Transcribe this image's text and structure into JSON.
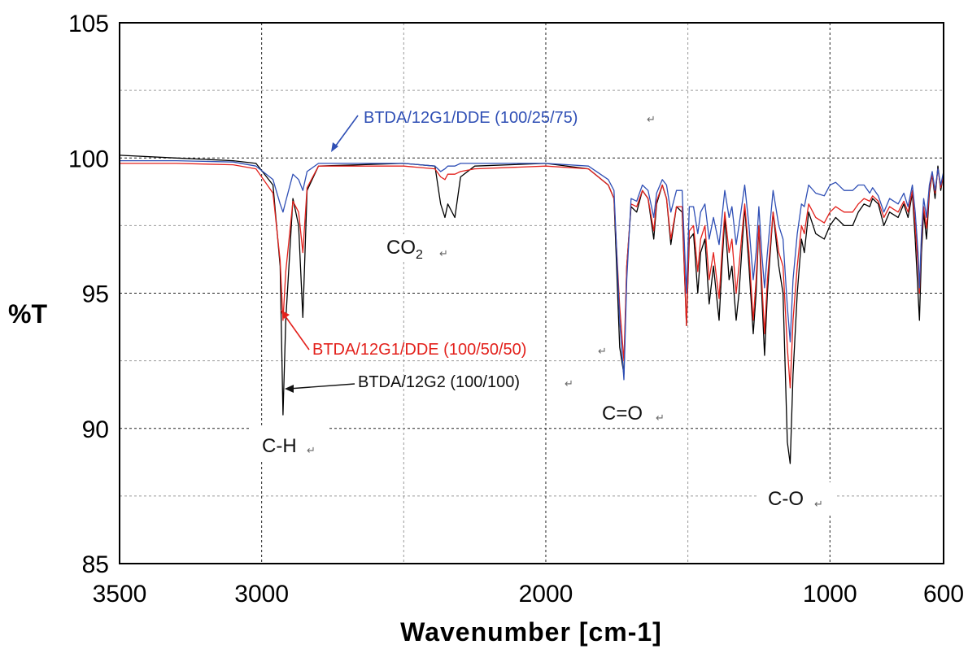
{
  "chart_data": {
    "type": "line",
    "xlabel": "Wavenumber [cm-1]",
    "ylabel": "%T",
    "xlim": [
      3500,
      600
    ],
    "ylim": [
      85,
      105
    ],
    "x_reversed": true,
    "grid": true,
    "x_ticks": [
      "3500",
      "3000",
      "2000",
      "1000",
      "600"
    ],
    "x_tick_values": [
      3500,
      3000,
      2000,
      1000,
      600
    ],
    "y_ticks": [
      "105",
      "100",
      "95",
      "90",
      "85"
    ],
    "y_tick_values": [
      105,
      100,
      95,
      90,
      85
    ],
    "series": [
      {
        "name": "BTDA/12G2 (100/100)",
        "color": "#000000",
        "points": [
          [
            3500,
            100.1
          ],
          [
            3300,
            100.0
          ],
          [
            3100,
            99.9
          ],
          [
            3020,
            99.8
          ],
          [
            2960,
            99.0
          ],
          [
            2935,
            96.0
          ],
          [
            2925,
            90.5
          ],
          [
            2915,
            94.0
          ],
          [
            2890,
            98.5
          ],
          [
            2870,
            97.5
          ],
          [
            2855,
            94.1
          ],
          [
            2840,
            98.8
          ],
          [
            2800,
            99.7
          ],
          [
            2500,
            99.8
          ],
          [
            2390,
            99.7
          ],
          [
            2370,
            98.3
          ],
          [
            2355,
            97.8
          ],
          [
            2345,
            98.3
          ],
          [
            2320,
            97.8
          ],
          [
            2300,
            99.3
          ],
          [
            2250,
            99.7
          ],
          [
            2000,
            99.8
          ],
          [
            1850,
            99.6
          ],
          [
            1780,
            99.0
          ],
          [
            1760,
            98.5
          ],
          [
            1740,
            93.0
          ],
          [
            1725,
            92.0
          ],
          [
            1715,
            96.0
          ],
          [
            1700,
            98.2
          ],
          [
            1680,
            98.0
          ],
          [
            1660,
            98.8
          ],
          [
            1640,
            98.5
          ],
          [
            1620,
            97.0
          ],
          [
            1610,
            98.3
          ],
          [
            1590,
            99.0
          ],
          [
            1575,
            98.5
          ],
          [
            1560,
            96.8
          ],
          [
            1540,
            98.2
          ],
          [
            1520,
            98.0
          ],
          [
            1505,
            93.8
          ],
          [
            1495,
            97.0
          ],
          [
            1480,
            97.2
          ],
          [
            1465,
            95.0
          ],
          [
            1455,
            96.5
          ],
          [
            1440,
            97.0
          ],
          [
            1425,
            94.6
          ],
          [
            1410,
            96.0
          ],
          [
            1390,
            94.0
          ],
          [
            1380,
            96.0
          ],
          [
            1370,
            97.8
          ],
          [
            1355,
            95.5
          ],
          [
            1345,
            96.0
          ],
          [
            1330,
            94.0
          ],
          [
            1320,
            95.0
          ],
          [
            1300,
            98.2
          ],
          [
            1285,
            96.0
          ],
          [
            1270,
            93.5
          ],
          [
            1260,
            95.0
          ],
          [
            1250,
            97.5
          ],
          [
            1240,
            95.0
          ],
          [
            1230,
            92.7
          ],
          [
            1220,
            95.0
          ],
          [
            1200,
            98.0
          ],
          [
            1180,
            96.0
          ],
          [
            1165,
            95.0
          ],
          [
            1150,
            89.5
          ],
          [
            1140,
            88.7
          ],
          [
            1130,
            92.0
          ],
          [
            1115,
            95.0
          ],
          [
            1100,
            97.0
          ],
          [
            1090,
            96.5
          ],
          [
            1075,
            98.0
          ],
          [
            1050,
            97.2
          ],
          [
            1020,
            97.0
          ],
          [
            1000,
            97.5
          ],
          [
            980,
            97.8
          ],
          [
            950,
            97.5
          ],
          [
            920,
            97.5
          ],
          [
            900,
            98.0
          ],
          [
            880,
            98.3
          ],
          [
            860,
            98.2
          ],
          [
            850,
            98.5
          ],
          [
            830,
            98.3
          ],
          [
            810,
            97.5
          ],
          [
            790,
            98.0
          ],
          [
            760,
            97.8
          ],
          [
            740,
            98.3
          ],
          [
            725,
            97.8
          ],
          [
            710,
            98.7
          ],
          [
            700,
            97.0
          ],
          [
            690,
            95.0
          ],
          [
            685,
            94.0
          ],
          [
            678,
            96.5
          ],
          [
            670,
            98.0
          ],
          [
            660,
            97.0
          ],
          [
            650,
            98.7
          ],
          [
            640,
            99.4
          ],
          [
            630,
            98.5
          ],
          [
            620,
            99.7
          ],
          [
            610,
            98.8
          ],
          [
            600,
            99.4
          ]
        ]
      },
      {
        "name": "BTDA/12G1/DDE (100/50/50)",
        "color": "#e3211c",
        "points": [
          [
            3500,
            99.8
          ],
          [
            3300,
            99.8
          ],
          [
            3100,
            99.75
          ],
          [
            3020,
            99.6
          ],
          [
            2960,
            98.7
          ],
          [
            2935,
            96.2
          ],
          [
            2925,
            94.0
          ],
          [
            2915,
            95.8
          ],
          [
            2890,
            98.4
          ],
          [
            2870,
            98.0
          ],
          [
            2855,
            96.5
          ],
          [
            2840,
            98.9
          ],
          [
            2800,
            99.7
          ],
          [
            2500,
            99.7
          ],
          [
            2390,
            99.6
          ],
          [
            2370,
            99.3
          ],
          [
            2355,
            99.2
          ],
          [
            2345,
            99.4
          ],
          [
            2320,
            99.4
          ],
          [
            2300,
            99.5
          ],
          [
            2250,
            99.6
          ],
          [
            2000,
            99.7
          ],
          [
            1850,
            99.6
          ],
          [
            1780,
            99.0
          ],
          [
            1760,
            98.5
          ],
          [
            1740,
            94.5
          ],
          [
            1725,
            92.5
          ],
          [
            1715,
            96.0
          ],
          [
            1700,
            98.3
          ],
          [
            1680,
            98.2
          ],
          [
            1660,
            98.8
          ],
          [
            1640,
            98.5
          ],
          [
            1620,
            97.3
          ],
          [
            1610,
            98.4
          ],
          [
            1590,
            99.0
          ],
          [
            1575,
            98.5
          ],
          [
            1560,
            97.0
          ],
          [
            1540,
            98.2
          ],
          [
            1520,
            98.2
          ],
          [
            1505,
            93.8
          ],
          [
            1495,
            97.3
          ],
          [
            1480,
            97.5
          ],
          [
            1465,
            95.8
          ],
          [
            1455,
            97.0
          ],
          [
            1440,
            97.5
          ],
          [
            1425,
            95.5
          ],
          [
            1410,
            96.5
          ],
          [
            1390,
            94.8
          ],
          [
            1380,
            96.5
          ],
          [
            1370,
            98.0
          ],
          [
            1355,
            96.5
          ],
          [
            1345,
            97.0
          ],
          [
            1330,
            95.0
          ],
          [
            1320,
            96.0
          ],
          [
            1300,
            98.3
          ],
          [
            1285,
            96.5
          ],
          [
            1270,
            94.0
          ],
          [
            1260,
            95.5
          ],
          [
            1250,
            97.5
          ],
          [
            1240,
            95.5
          ],
          [
            1230,
            93.5
          ],
          [
            1220,
            95.5
          ],
          [
            1200,
            98.0
          ],
          [
            1180,
            96.5
          ],
          [
            1165,
            96.0
          ],
          [
            1150,
            93.0
          ],
          [
            1140,
            91.5
          ],
          [
            1130,
            94.0
          ],
          [
            1115,
            96.0
          ],
          [
            1100,
            97.5
          ],
          [
            1090,
            97.2
          ],
          [
            1075,
            98.3
          ],
          [
            1050,
            97.8
          ],
          [
            1020,
            97.6
          ],
          [
            1000,
            98.0
          ],
          [
            980,
            98.2
          ],
          [
            950,
            98.0
          ],
          [
            920,
            98.0
          ],
          [
            900,
            98.3
          ],
          [
            880,
            98.5
          ],
          [
            860,
            98.4
          ],
          [
            850,
            98.6
          ],
          [
            830,
            98.4
          ],
          [
            810,
            97.8
          ],
          [
            790,
            98.2
          ],
          [
            760,
            98.0
          ],
          [
            740,
            98.4
          ],
          [
            725,
            98.0
          ],
          [
            710,
            98.8
          ],
          [
            700,
            97.5
          ],
          [
            690,
            96.0
          ],
          [
            685,
            95.0
          ],
          [
            678,
            97.0
          ],
          [
            670,
            98.2
          ],
          [
            660,
            97.4
          ],
          [
            650,
            98.8
          ],
          [
            640,
            99.4
          ],
          [
            630,
            98.7
          ],
          [
            620,
            99.6
          ],
          [
            610,
            98.9
          ],
          [
            600,
            99.4
          ]
        ]
      },
      {
        "name": "BTDA/12G1/DDE (100/25/75)",
        "color": "#2f4fb5",
        "points": [
          [
            3500,
            99.9
          ],
          [
            3300,
            99.9
          ],
          [
            3100,
            99.85
          ],
          [
            3020,
            99.7
          ],
          [
            2960,
            99.2
          ],
          [
            2935,
            98.3
          ],
          [
            2925,
            98.0
          ],
          [
            2915,
            98.4
          ],
          [
            2890,
            99.4
          ],
          [
            2870,
            99.2
          ],
          [
            2855,
            98.8
          ],
          [
            2840,
            99.5
          ],
          [
            2800,
            99.8
          ],
          [
            2500,
            99.8
          ],
          [
            2390,
            99.7
          ],
          [
            2370,
            99.5
          ],
          [
            2355,
            99.6
          ],
          [
            2345,
            99.7
          ],
          [
            2320,
            99.7
          ],
          [
            2300,
            99.8
          ],
          [
            2250,
            99.8
          ],
          [
            2000,
            99.8
          ],
          [
            1850,
            99.7
          ],
          [
            1780,
            99.2
          ],
          [
            1760,
            98.8
          ],
          [
            1740,
            94.0
          ],
          [
            1725,
            91.8
          ],
          [
            1715,
            95.5
          ],
          [
            1700,
            98.5
          ],
          [
            1680,
            98.4
          ],
          [
            1660,
            99.0
          ],
          [
            1640,
            98.8
          ],
          [
            1620,
            97.8
          ],
          [
            1610,
            98.7
          ],
          [
            1590,
            99.2
          ],
          [
            1575,
            99.0
          ],
          [
            1560,
            98.0
          ],
          [
            1540,
            98.8
          ],
          [
            1520,
            98.8
          ],
          [
            1505,
            95.0
          ],
          [
            1495,
            98.2
          ],
          [
            1480,
            98.2
          ],
          [
            1465,
            97.2
          ],
          [
            1455,
            98.0
          ],
          [
            1440,
            98.3
          ],
          [
            1425,
            97.0
          ],
          [
            1410,
            97.8
          ],
          [
            1390,
            96.8
          ],
          [
            1380,
            97.8
          ],
          [
            1370,
            98.8
          ],
          [
            1355,
            97.8
          ],
          [
            1345,
            98.2
          ],
          [
            1330,
            96.8
          ],
          [
            1320,
            97.5
          ],
          [
            1300,
            99.0
          ],
          [
            1285,
            97.5
          ],
          [
            1270,
            95.5
          ],
          [
            1260,
            96.5
          ],
          [
            1250,
            98.2
          ],
          [
            1240,
            96.5
          ],
          [
            1230,
            95.2
          ],
          [
            1220,
            96.5
          ],
          [
            1200,
            98.8
          ],
          [
            1180,
            97.5
          ],
          [
            1165,
            97.0
          ],
          [
            1150,
            94.5
          ],
          [
            1140,
            93.2
          ],
          [
            1130,
            95.5
          ],
          [
            1115,
            97.2
          ],
          [
            1100,
            98.3
          ],
          [
            1090,
            98.2
          ],
          [
            1075,
            99.0
          ],
          [
            1050,
            98.7
          ],
          [
            1020,
            98.6
          ],
          [
            1000,
            99.0
          ],
          [
            980,
            99.1
          ],
          [
            950,
            98.8
          ],
          [
            920,
            98.8
          ],
          [
            900,
            99.0
          ],
          [
            880,
            99.0
          ],
          [
            860,
            98.7
          ],
          [
            850,
            98.9
          ],
          [
            830,
            98.6
          ],
          [
            810,
            98.0
          ],
          [
            790,
            98.5
          ],
          [
            760,
            98.3
          ],
          [
            740,
            98.7
          ],
          [
            725,
            98.2
          ],
          [
            710,
            99.0
          ],
          [
            700,
            98.0
          ],
          [
            690,
            96.5
          ],
          [
            685,
            95.2
          ],
          [
            678,
            97.2
          ],
          [
            670,
            98.5
          ],
          [
            660,
            97.8
          ],
          [
            650,
            99.0
          ],
          [
            640,
            99.5
          ],
          [
            630,
            98.8
          ],
          [
            620,
            99.6
          ],
          [
            610,
            99.0
          ],
          [
            600,
            99.5
          ]
        ]
      }
    ],
    "annotations": {
      "blue_label": "BTDA/12G1/DDE (100/25/75)",
      "red_label": "BTDA/12G1/DDE (100/50/50)",
      "black_label": "BTDA/12G2 (100/100)",
      "co2_main": "CO",
      "co2_sub": "2",
      "ch": "C-H",
      "co_double": "C=O",
      "c_o": "C-O",
      "return_mark": "↵"
    }
  }
}
